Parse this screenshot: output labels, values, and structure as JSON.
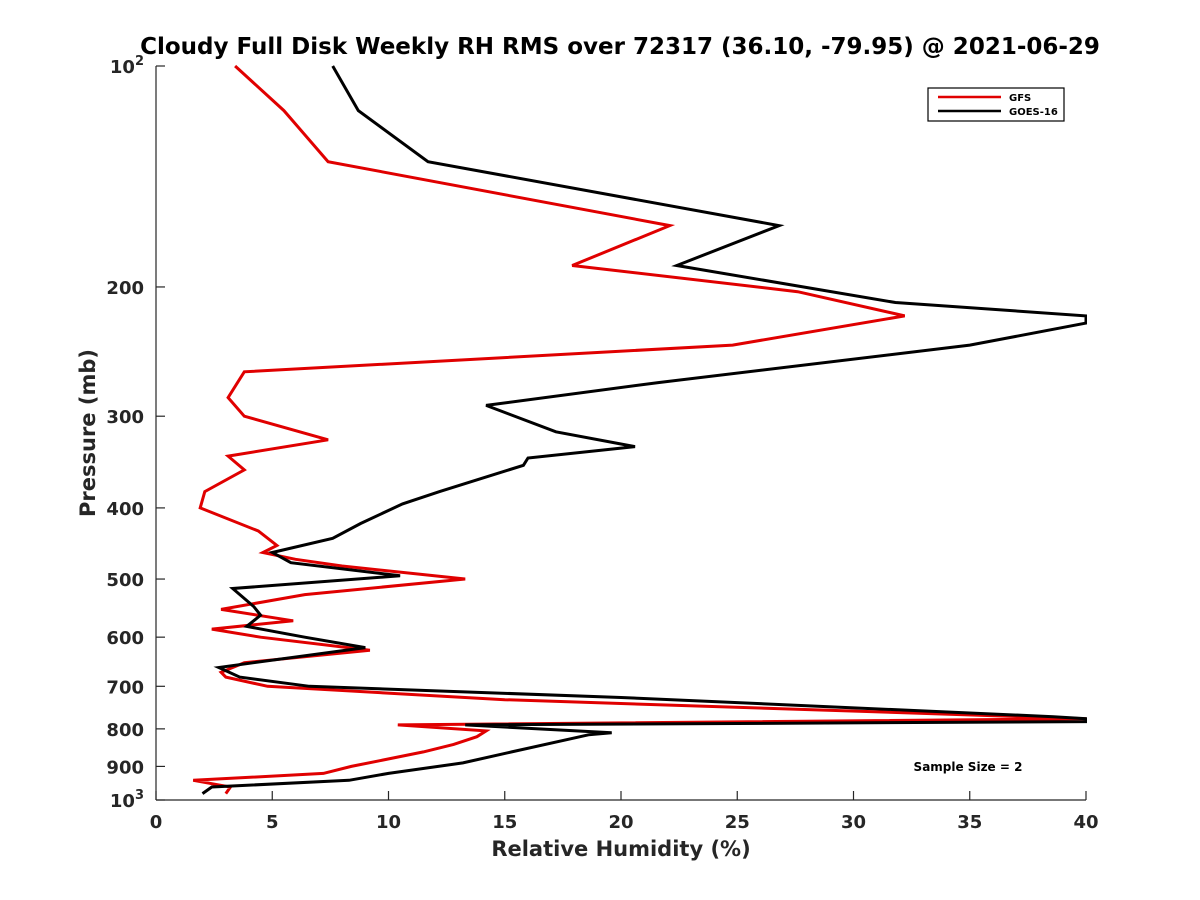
{
  "chart_data": {
    "type": "line",
    "title": "Cloudy Full Disk Weekly RH RMS over 72317 (36.10, -79.95) @ 2021-06-29",
    "xlabel": "Relative Humidity (%)",
    "ylabel": "Pressure (mb)",
    "xlim": [
      0,
      40
    ],
    "ylim": [
      100,
      1000
    ],
    "y_scale": "log",
    "y_reversed": true,
    "x_ticks": [
      "0",
      "5",
      "10",
      "15",
      "20",
      "25",
      "30",
      "35",
      "40"
    ],
    "y_ticks": [
      {
        "value": 100,
        "base": "10",
        "exp": "2"
      },
      {
        "value": 200,
        "label": "200"
      },
      {
        "value": 300,
        "label": "300"
      },
      {
        "value": 400,
        "label": "400"
      },
      {
        "value": 500,
        "label": "500"
      },
      {
        "value": 600,
        "label": "600"
      },
      {
        "value": 700,
        "label": "700"
      },
      {
        "value": 800,
        "label": "800"
      },
      {
        "value": 900,
        "label": "900"
      },
      {
        "value": 1000,
        "base": "10",
        "exp": "3"
      }
    ],
    "legend_position": "top-right",
    "annotation": "Sample Size = 2",
    "series": [
      {
        "name": "GFS",
        "color": "#e00000",
        "points": [
          [
            3.4,
            100
          ],
          [
            5.5,
            115
          ],
          [
            7.4,
            135
          ],
          [
            22.1,
            165
          ],
          [
            17.9,
            187
          ],
          [
            27.6,
            203
          ],
          [
            32.2,
            219
          ],
          [
            24.8,
            240
          ],
          [
            3.8,
            261
          ],
          [
            3.1,
            283
          ],
          [
            3.8,
            300
          ],
          [
            7.4,
            323
          ],
          [
            3.1,
            340
          ],
          [
            3.8,
            355
          ],
          [
            2.1,
            380
          ],
          [
            1.9,
            400
          ],
          [
            4.4,
            430
          ],
          [
            5.2,
            450
          ],
          [
            4.6,
            460
          ],
          [
            6.0,
            470
          ],
          [
            8.0,
            480
          ],
          [
            13.3,
            500
          ],
          [
            6.4,
            525
          ],
          [
            2.8,
            550
          ],
          [
            5.9,
            570
          ],
          [
            2.4,
            585
          ],
          [
            4.5,
            600
          ],
          [
            9.2,
            625
          ],
          [
            3.8,
            650
          ],
          [
            2.8,
            670
          ],
          [
            3.0,
            680
          ],
          [
            4.8,
            700
          ],
          [
            15.0,
            730
          ],
          [
            40.0,
            775
          ],
          [
            10.4,
            790
          ],
          [
            14.2,
            805
          ],
          [
            13.8,
            820
          ],
          [
            12.8,
            840
          ],
          [
            11.5,
            860
          ],
          [
            8.4,
            900
          ],
          [
            7.2,
            920
          ],
          [
            1.6,
            940
          ],
          [
            3.2,
            960
          ],
          [
            3.0,
            980
          ]
        ]
      },
      {
        "name": "GOES-16",
        "color": "#000000",
        "points": [
          [
            7.6,
            100
          ],
          [
            8.7,
            115
          ],
          [
            11.7,
            135
          ],
          [
            26.8,
            165
          ],
          [
            22.4,
            187
          ],
          [
            31.8,
            210
          ],
          [
            40.0,
            219
          ],
          [
            40.0,
            224
          ],
          [
            35.0,
            240
          ],
          [
            21.6,
            270
          ],
          [
            14.2,
            290
          ],
          [
            17.2,
            315
          ],
          [
            20.6,
            330
          ],
          [
            16.0,
            342
          ],
          [
            15.8,
            350
          ],
          [
            12.2,
            380
          ],
          [
            10.6,
            395
          ],
          [
            8.8,
            420
          ],
          [
            7.6,
            440
          ],
          [
            5.0,
            460
          ],
          [
            5.8,
            475
          ],
          [
            10.5,
            495
          ],
          [
            3.3,
            515
          ],
          [
            4.2,
            545
          ],
          [
            4.5,
            560
          ],
          [
            3.9,
            580
          ],
          [
            6.4,
            600
          ],
          [
            9.0,
            620
          ],
          [
            4.2,
            650
          ],
          [
            2.7,
            660
          ],
          [
            3.6,
            680
          ],
          [
            6.6,
            700
          ],
          [
            20.0,
            725
          ],
          [
            38.6,
            770
          ],
          [
            40.0,
            775
          ],
          [
            40.0,
            782
          ],
          [
            13.3,
            790
          ],
          [
            19.6,
            810
          ],
          [
            18.6,
            815
          ],
          [
            15.3,
            860
          ],
          [
            13.2,
            890
          ],
          [
            10.0,
            920
          ],
          [
            8.3,
            940
          ],
          [
            2.4,
            960
          ],
          [
            2.0,
            980
          ]
        ]
      }
    ]
  }
}
